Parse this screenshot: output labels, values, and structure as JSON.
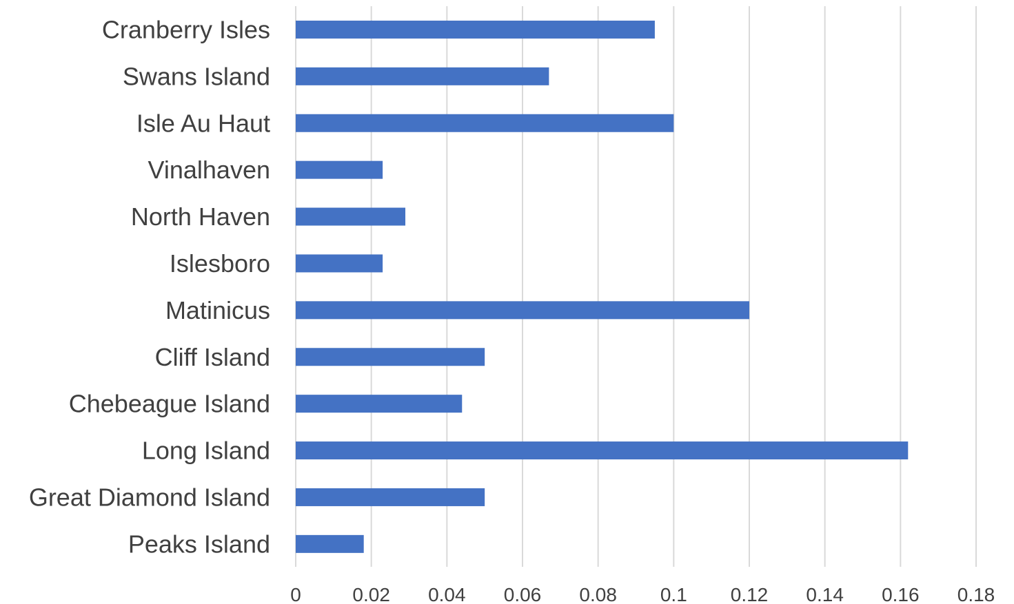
{
  "chart_data": {
    "type": "bar",
    "orientation": "horizontal",
    "categories": [
      "Cranberry Isles",
      "Swans Island",
      "Isle Au Haut",
      "Vinalhaven",
      "North Haven",
      "Islesboro",
      "Matinicus",
      "Cliff Island",
      "Chebeague Island",
      "Long Island",
      "Great Diamond Island",
      "Peaks Island"
    ],
    "values": [
      0.095,
      0.067,
      0.1,
      0.023,
      0.029,
      0.023,
      0.12,
      0.05,
      0.044,
      0.162,
      0.05,
      0.018
    ],
    "title": "",
    "xlabel": "",
    "ylabel": "",
    "xlim": [
      0,
      0.18
    ],
    "xticks": [
      "0",
      "0.02",
      "0.04",
      "0.06",
      "0.08",
      "0.1",
      "0.12",
      "0.14",
      "0.16",
      "0.18"
    ],
    "grid": "vertical",
    "legend": "none",
    "bar_color": "#4472c4"
  }
}
